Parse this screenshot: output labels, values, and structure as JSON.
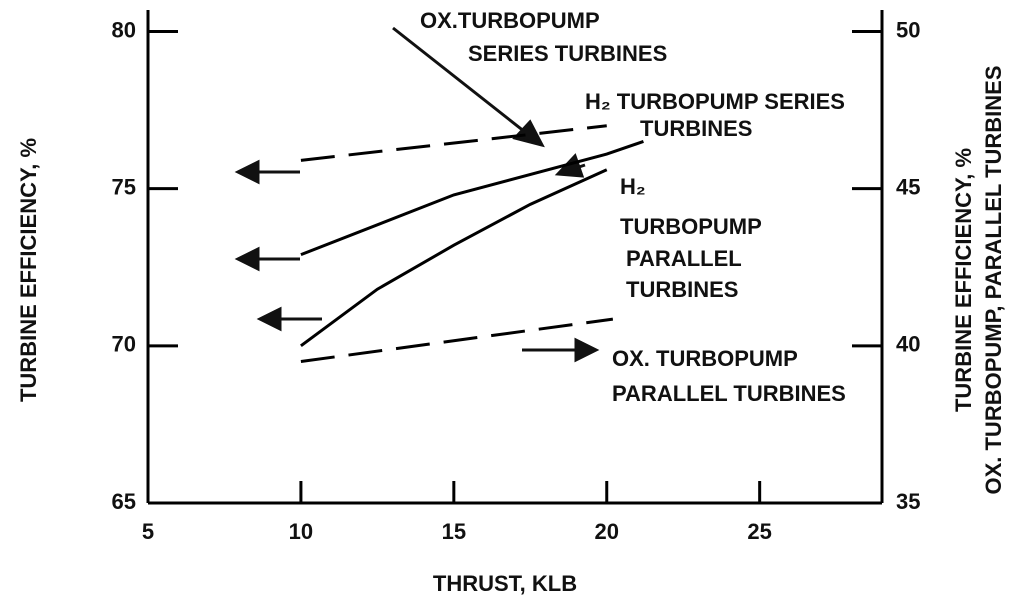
{
  "chart_data": {
    "type": "line",
    "xlabel": "THRUST, KLB",
    "ylabel": "TURBINE EFFICIENCY, %",
    "y2label": [
      "TURBINE EFFICIENCY, %",
      "OX. TURBOPUMP, PARALLEL TURBINES"
    ],
    "xlim": [
      5,
      29
    ],
    "xticks": [
      5,
      10,
      15,
      20,
      25
    ],
    "ylim": [
      65,
      81
    ],
    "yticks": [
      65,
      70,
      75,
      80
    ],
    "y2lim": [
      35,
      51
    ],
    "y2ticks": [
      35,
      40,
      45,
      50
    ],
    "color": "#000000",
    "series": [
      {
        "label": [
          "OX.TURBOPUMP",
          "SERIES TURBINES"
        ],
        "dashed": true,
        "x": [
          10,
          20
        ],
        "values": [
          75.9,
          77.0
        ]
      },
      {
        "label": [
          "H₂ TURBOPUMP SERIES",
          "TURBINES"
        ],
        "dashed": false,
        "x": [
          10,
          15,
          20,
          21.2
        ],
        "values": [
          72.9,
          74.8,
          76.1,
          76.5
        ]
      },
      {
        "label": [
          "H₂",
          "TURBOPUMP",
          "PARALLEL",
          "TURBINES"
        ],
        "dashed": false,
        "axis": "y2",
        "x": [
          10,
          12.5,
          15,
          17.5,
          20
        ],
        "values": [
          40.0,
          41.8,
          43.2,
          44.5,
          45.6
        ]
      },
      {
        "label": [
          "OX. TURBOPUMP",
          "PARALLEL TURBINES"
        ],
        "dashed": true,
        "axis": "y2",
        "x": [
          10,
          20.2
        ],
        "values": [
          39.5,
          40.85
        ]
      }
    ]
  }
}
